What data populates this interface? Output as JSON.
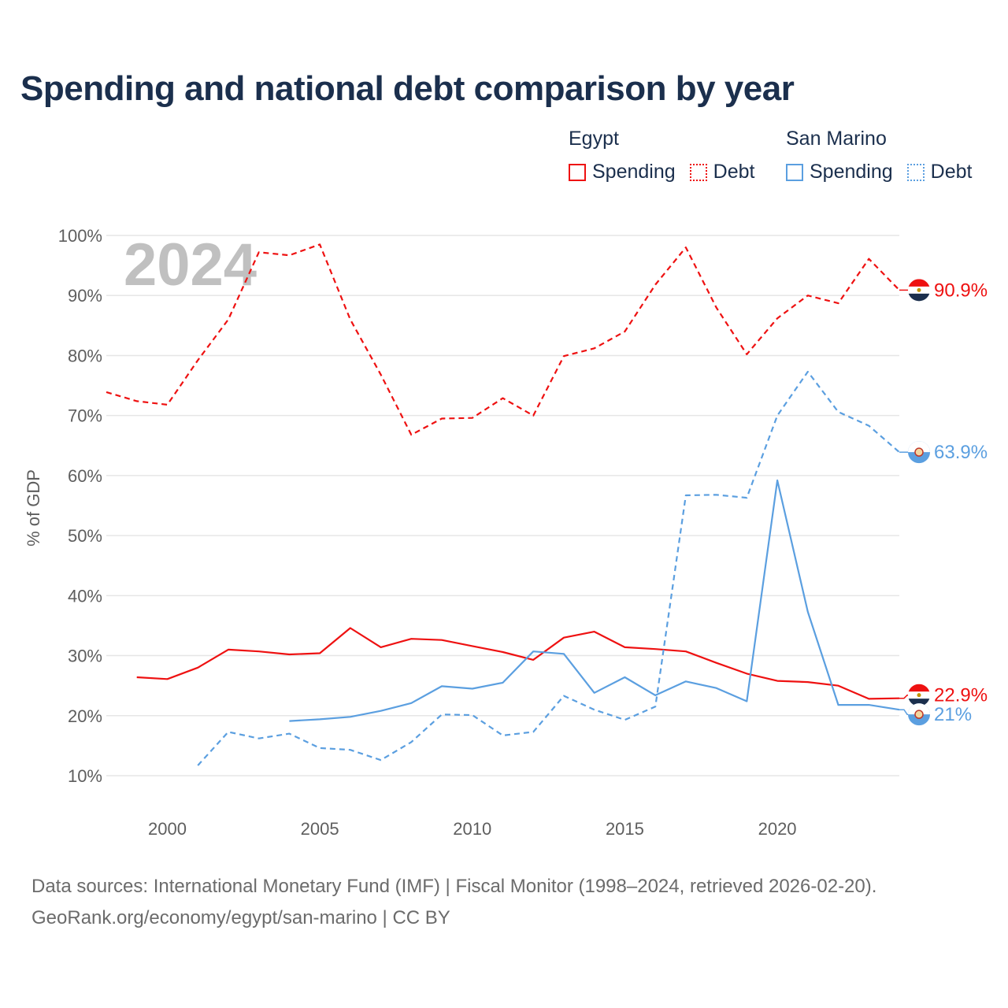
{
  "title": "Spending and national debt comparison by year",
  "sources": {
    "line1": "Data sources: International Monetary Fund (IMF) | Fiscal Monitor (1998–2024, retrieved 2026-02-20).",
    "line2": "GeoRank.org/economy/egypt/san-marino | CC BY"
  },
  "legend": {
    "egypt": {
      "name": "Egypt",
      "spending": "Spending",
      "debt": "Debt"
    },
    "sanmarino": {
      "name": "San Marino",
      "spending": "Spending",
      "debt": "Debt"
    }
  },
  "colors": {
    "egypt": "#ee1111",
    "sanmarino": "#5b9fe0",
    "title": "#1b2f4d",
    "grid": "#e6e6e6",
    "year": "#c0c0c0"
  },
  "chart_data": {
    "type": "line",
    "ylabel": "% of GDP",
    "year_label": "2024",
    "ylim": [
      5,
      102
    ],
    "xlim": [
      1998,
      2024
    ],
    "yticks": [
      10,
      20,
      30,
      40,
      50,
      60,
      70,
      80,
      90,
      100
    ],
    "ytick_labels": [
      "10%",
      "20%",
      "30%",
      "40%",
      "50%",
      "60%",
      "70%",
      "80%",
      "90%",
      "100%"
    ],
    "xticks": [
      2000,
      2005,
      2010,
      2015,
      2020
    ],
    "xtick_labels": [
      "2000",
      "2005",
      "2010",
      "2015",
      "2020"
    ],
    "series": [
      {
        "name": "Egypt Debt",
        "country": "egypt",
        "style": "dashed",
        "x": [
          1998,
          1999,
          2000,
          2001,
          2002,
          2003,
          2004,
          2005,
          2006,
          2007,
          2008,
          2009,
          2010,
          2011,
          2012,
          2013,
          2014,
          2015,
          2016,
          2017,
          2018,
          2019,
          2020,
          2021,
          2022,
          2023,
          2024
        ],
        "values": [
          73.9,
          72.4,
          71.8,
          79.2,
          86.0,
          97.2,
          96.7,
          98.5,
          86.0,
          76.8,
          66.8,
          69.5,
          69.6,
          72.9,
          70.0,
          79.9,
          81.2,
          84.0,
          91.8,
          98.0,
          88.0,
          80.2,
          86.2,
          90.0,
          88.7,
          96.1,
          90.9
        ],
        "end_label": "90.9%"
      },
      {
        "name": "Egypt Spending",
        "country": "egypt",
        "style": "solid",
        "x": [
          1999,
          2000,
          2001,
          2002,
          2003,
          2004,
          2005,
          2006,
          2007,
          2008,
          2009,
          2010,
          2011,
          2012,
          2013,
          2014,
          2015,
          2016,
          2017,
          2018,
          2019,
          2020,
          2021,
          2022,
          2023,
          2024
        ],
        "values": [
          26.4,
          26.1,
          28.0,
          31.0,
          30.7,
          30.2,
          30.4,
          34.6,
          31.4,
          32.8,
          32.6,
          31.6,
          30.6,
          29.3,
          33.0,
          34.0,
          31.4,
          31.1,
          30.7,
          28.8,
          27.0,
          25.8,
          25.6,
          25.0,
          22.8,
          22.9
        ],
        "end_label": "22.9%"
      },
      {
        "name": "San Marino Debt",
        "country": "sanmarino",
        "style": "dashed",
        "x": [
          2001,
          2002,
          2003,
          2004,
          2005,
          2006,
          2007,
          2008,
          2009,
          2010,
          2011,
          2012,
          2013,
          2014,
          2015,
          2016,
          2017,
          2018,
          2019,
          2020,
          2021,
          2022,
          2023,
          2024
        ],
        "values": [
          11.7,
          17.3,
          16.2,
          17.0,
          14.6,
          14.3,
          12.6,
          15.6,
          20.2,
          20.1,
          16.7,
          17.3,
          23.3,
          21.0,
          19.3,
          21.5,
          56.7,
          56.8,
          56.3,
          70.0,
          77.3,
          70.6,
          68.3,
          63.9
        ],
        "end_label": "63.9%"
      },
      {
        "name": "San Marino Spending",
        "country": "sanmarino",
        "style": "solid",
        "x": [
          2004,
          2005,
          2006,
          2007,
          2008,
          2009,
          2010,
          2011,
          2012,
          2013,
          2014,
          2015,
          2016,
          2017,
          2018,
          2019,
          2020,
          2021,
          2022,
          2023,
          2024
        ],
        "values": [
          19.1,
          19.4,
          19.8,
          20.8,
          22.1,
          24.9,
          24.5,
          25.5,
          30.7,
          30.3,
          23.8,
          26.4,
          23.4,
          25.7,
          24.6,
          22.4,
          59.2,
          37.3,
          21.8,
          21.8,
          21.0
        ],
        "end_label": "21%"
      }
    ]
  }
}
